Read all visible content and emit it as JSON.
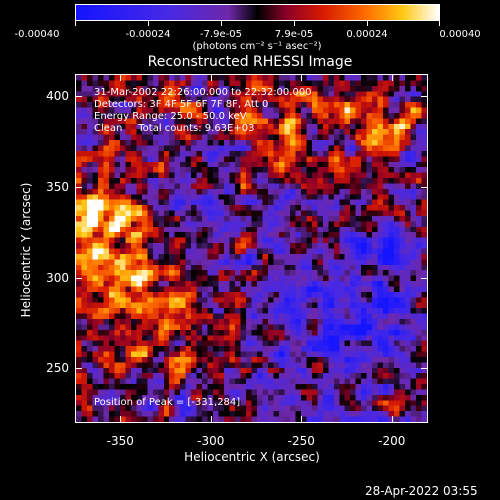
{
  "chart_data": {
    "type": "heatmap",
    "title": "Reconstructed RHESSI Image",
    "xlabel": "Heliocentric X (arcsec)",
    "ylabel": "Heliocentric Y (arcsec)",
    "xlim": [
      -375,
      -180
    ],
    "ylim": [
      220,
      412
    ],
    "x_ticks": [
      "-350",
      "-300",
      "-250",
      "-200"
    ],
    "x_tick_values": [
      -350,
      -300,
      -250,
      -200
    ],
    "y_ticks": [
      "250",
      "300",
      "350",
      "400"
    ],
    "y_tick_values": [
      250,
      300,
      350,
      400
    ],
    "colorbar": {
      "ticks": [
        "-0.00040",
        "-0.00024",
        "-7.9e-05",
        "7.9e-05",
        "0.00024",
        "0.00040"
      ],
      "range": [
        -0.0004,
        0.0004
      ],
      "unit": "(photons cm⁻² s⁻¹ asec⁻²)"
    },
    "annotations": {
      "time": "31-Mar-2002 22:26:00.000 to 22:32:00.000",
      "detectors": "Detectors: 3F 4F 5F 6F 7F 8F, Att 0",
      "energy": "Energy Range: 25.0 - 50.0 keV",
      "method": "Clean     Total counts: 9.63E+03",
      "peak": "Position of Peak = [-331,284]"
    },
    "peak": [
      -331,
      284
    ]
  },
  "timestamp": "28-Apr-2022 03:55"
}
